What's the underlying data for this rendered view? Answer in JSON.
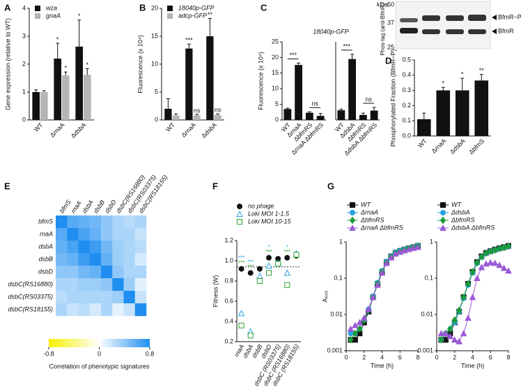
{
  "chart_data": [
    {
      "panel": "A",
      "type": "bar",
      "ylabel": "Gene expression (relative to WT)",
      "categories": [
        "WT",
        "ΔrnaA",
        "ΔdsbA"
      ],
      "ylim": [
        0,
        4
      ],
      "yticks": [
        0,
        1,
        2,
        3,
        4
      ],
      "series": [
        {
          "name": "wza",
          "color": "#111111",
          "values": [
            1,
            2.2,
            2.63
          ],
          "errors": [
            0.08,
            0.55,
            0.95
          ],
          "significance": [
            null,
            "*",
            "*"
          ]
        },
        {
          "name": "gnaA",
          "color": "#b5b5b5",
          "values": [
            1,
            1.6,
            1.62
          ],
          "errors": [
            0.05,
            0.12,
            0.22
          ],
          "significance": [
            null,
            "*",
            "*"
          ]
        }
      ]
    },
    {
      "panel": "B",
      "type": "bar",
      "ylabel": "Fluorescence (x 10⁴)",
      "categories": [
        "WT",
        "ΔrnaA",
        "ΔdsbA"
      ],
      "ylim": [
        0,
        20
      ],
      "yticks": [
        0,
        5,
        10,
        15,
        20
      ],
      "series": [
        {
          "name": "18040p-GFP",
          "color": "#111111",
          "values": [
            2,
            12.8,
            15
          ],
          "errors": [
            1.8,
            0.8,
            3.2
          ],
          "significance": [
            null,
            "***",
            "**"
          ]
        },
        {
          "name": "adcp-GFP",
          "color": "#b5b5b5",
          "values": [
            0.8,
            0.8,
            0.9
          ],
          "errors": [
            0.3,
            0.2,
            0.2
          ],
          "significance": [
            null,
            "ns",
            "ns"
          ]
        }
      ]
    },
    {
      "panel": "C",
      "type": "bar",
      "title": "18040p-GFP",
      "ylabel": "Fluorescence (x 10⁴)",
      "categories": [
        "WT",
        "ΔrnaA",
        "ΔbfmRS",
        "ΔrnaA ΔbfmRS",
        "WT",
        "ΔdsbA",
        "ΔbfmRS",
        "ΔdsbA ΔbfmRS"
      ],
      "ylim": [
        0,
        25
      ],
      "yticks": [
        0,
        5,
        10,
        15,
        20,
        25
      ],
      "series": [
        {
          "color": "#111111",
          "values": [
            3.5,
            17.6,
            2.3,
            1.3,
            3.1,
            19.5,
            1.6,
            3.0
          ],
          "errors": [
            0.3,
            0.6,
            0.3,
            0.8,
            0.4,
            1.5,
            0.6,
            1.0
          ],
          "significance": [
            null,
            "***",
            null,
            "ns",
            null,
            "***",
            null,
            "ns"
          ]
        }
      ]
    },
    {
      "panel": "D",
      "type": "bar",
      "ylabel": "Phosphorylated Fraction (BfmR~P)",
      "blot": {
        "unit": "kDa",
        "markers": [
          50,
          37,
          25
        ],
        "bands": [
          "BfmR~P",
          "BfmR"
        ],
        "label": "Phos-tag (anti-BfmR)"
      },
      "categories": [
        "WT",
        "ΔrnaA",
        "ΔdsbA",
        "ΔbfmS"
      ],
      "ylim": [
        0,
        0.5
      ],
      "yticks": [
        {
          "value": 0,
          "label": "0.0"
        },
        0.1,
        0.2,
        0.3,
        0.4,
        0.5
      ],
      "series": [
        {
          "color": "#111111",
          "values": [
            0.11,
            0.3,
            0.3,
            0.365
          ],
          "errors": [
            0.04,
            0.02,
            0.08,
            0.04
          ],
          "significance": [
            null,
            "*",
            "*",
            "**"
          ]
        }
      ]
    },
    {
      "panel": "E",
      "type": "heatmap",
      "labels": [
        "bfmS",
        "rnaA",
        "dsbA",
        "dsbB",
        "dsbD",
        "dsbC(RS16880)",
        "dsbC(RS03375)",
        "dsbC(RS18155)"
      ],
      "values": [
        [
          0.8,
          0.6,
          0.55,
          0.5,
          0.4,
          0.3,
          0.25,
          0.3
        ],
        [
          0.6,
          0.8,
          0.65,
          0.55,
          0.4,
          0.3,
          0.3,
          0.2
        ],
        [
          0.55,
          0.65,
          0.8,
          0.7,
          0.5,
          0.35,
          0.3,
          0.25
        ],
        [
          0.5,
          0.55,
          0.7,
          0.8,
          0.55,
          0.35,
          0.3,
          0.15
        ],
        [
          0.4,
          0.4,
          0.5,
          0.55,
          0.8,
          0.4,
          0.3,
          0.3
        ],
        [
          0.3,
          0.3,
          0.35,
          0.35,
          0.4,
          0.8,
          0.35,
          0.1
        ],
        [
          0.25,
          0.3,
          0.3,
          0.3,
          0.3,
          0.35,
          0.8,
          0.2
        ],
        [
          0.3,
          0.2,
          0.25,
          0.15,
          0.3,
          0.1,
          0.2,
          0.8
        ]
      ],
      "colorbar": {
        "ticks": [
          -0.8,
          0,
          0.8
        ],
        "colors": [
          "#f5f000",
          "#ffffff",
          "#1f8ef0"
        ],
        "label": "Correlation of phenotypic signatures"
      }
    },
    {
      "panel": "F",
      "type": "scatter",
      "ylabel": "Fitness (W)",
      "categories": [
        "rnaA",
        "dsbA",
        "dsbB",
        "dsbD",
        "dsbC (RS03375)",
        "dsbC (RS16880)",
        "dsbC (RS18155)"
      ],
      "ylim": [
        0.2,
        1.2
      ],
      "yticks": [
        0.2,
        0.4,
        0.6,
        0.8,
        {
          "value": 1,
          "label": "1.0"
        },
        1.2
      ],
      "reference": 0.94,
      "series": [
        {
          "name": "no phage",
          "color": "#111111",
          "marker": "circle",
          "filled": true,
          "values": [
            0.92,
            0.88,
            0.92,
            1.03,
            1.02,
            1.03,
            1.05
          ],
          "significance": [
            null,
            null,
            null,
            null,
            null,
            null,
            null
          ]
        },
        {
          "name": "Loki MOI 1-1.5",
          "color": "#29a3e0",
          "marker": "triangle",
          "filled": false,
          "values": [
            0.48,
            0.3,
            0.85,
            0.95,
            0.98,
            0.88,
            1.07
          ],
          "significance": [
            "***",
            "***",
            null,
            "*",
            null,
            "*",
            null
          ]
        },
        {
          "name": "Loki MOI 10-15",
          "color": "#2aa02a",
          "marker": "square",
          "filled": false,
          "values": [
            0.36,
            0.26,
            0.8,
            0.88,
            0.97,
            0.76,
            1.06
          ],
          "significance": [
            "***",
            "***",
            null,
            "***",
            null,
            "***",
            null
          ]
        }
      ]
    },
    {
      "panel": "G",
      "type": "line",
      "ylabel": "A₆₀₀",
      "xlabel": "Time (h)",
      "log": true,
      "x": [
        0.5,
        1,
        1.5,
        2,
        2.5,
        3,
        3.5,
        4,
        4.5,
        5,
        5.5,
        6,
        6.5,
        7,
        7.5,
        8
      ],
      "xlim": [
        0,
        8
      ],
      "xticks": [
        0,
        2,
        4,
        6,
        8
      ],
      "ylim": [
        0.001,
        1
      ],
      "yticks": [
        0.001,
        0.01,
        0.1,
        1
      ],
      "series": [
        {
          "name": "WT",
          "color": "#111111",
          "marker": "square",
          "values": [
            0.002,
            0.002,
            0.003,
            0.006,
            0.012,
            0.03,
            0.07,
            0.15,
            0.28,
            0.4,
            0.5,
            0.56,
            0.62,
            0.67,
            0.72,
            0.78
          ]
        },
        {
          "name": "ΔrnaA",
          "color": "#29a3e0",
          "marker": "circle",
          "values": [
            0.003,
            0.003,
            0.004,
            0.007,
            0.014,
            0.032,
            0.075,
            0.16,
            0.29,
            0.41,
            0.52,
            0.58,
            0.63,
            0.68,
            0.73,
            0.8
          ]
        },
        {
          "name": "ΔbfmRS",
          "color": "#1a9b3a",
          "marker": "diamond",
          "values": [
            0.002,
            0.003,
            0.004,
            0.007,
            0.013,
            0.03,
            0.07,
            0.15,
            0.27,
            0.39,
            0.49,
            0.55,
            0.6,
            0.66,
            0.7,
            0.76
          ]
        },
        {
          "name": "ΔrnaA ΔbfmRS",
          "color": "#9b59d6",
          "marker": "triangle",
          "values": [
            0.004,
            0.005,
            0.006,
            0.008,
            0.014,
            0.03,
            0.065,
            0.14,
            0.26,
            0.37,
            0.47,
            0.53,
            0.58,
            0.63,
            0.68,
            0.72
          ]
        }
      ]
    },
    {
      "type": "line",
      "xlabel": "Time (h)",
      "log": true,
      "x": [
        0.5,
        1,
        1.5,
        2,
        2.5,
        3,
        3.5,
        4,
        4.5,
        5,
        5.5,
        6,
        6.5,
        7,
        7.5,
        8
      ],
      "xlim": [
        0,
        8
      ],
      "xticks": [
        0,
        2,
        4,
        6,
        8
      ],
      "ylim": [
        0.001,
        1
      ],
      "yticks": [
        0.001,
        0.01,
        0.1,
        1
      ],
      "series": [
        {
          "name": "WT",
          "color": "#111111",
          "marker": "square",
          "values": [
            0.002,
            0.002,
            0.003,
            0.006,
            0.012,
            0.03,
            0.07,
            0.15,
            0.28,
            0.4,
            0.5,
            0.56,
            0.62,
            0.67,
            0.72,
            0.78
          ]
        },
        {
          "name": "ΔdsbA",
          "color": "#29a3e0",
          "marker": "circle",
          "values": [
            0.002,
            0.003,
            0.004,
            0.006,
            0.012,
            0.028,
            0.065,
            0.14,
            0.26,
            0.38,
            0.48,
            0.55,
            0.6,
            0.65,
            0.7,
            0.75
          ]
        },
        {
          "name": "ΔbfmRS",
          "color": "#1a9b3a",
          "marker": "diamond",
          "values": [
            0.002,
            0.003,
            0.004,
            0.007,
            0.013,
            0.03,
            0.07,
            0.15,
            0.27,
            0.39,
            0.49,
            0.55,
            0.6,
            0.66,
            0.7,
            0.76
          ]
        },
        {
          "name": "ΔdsbA ΔbfmRS",
          "color": "#9b59d6",
          "marker": "triangle",
          "values": [
            0.003,
            0.003,
            0.0025,
            0.002,
            0.0018,
            0.003,
            0.008,
            0.03,
            0.1,
            0.2,
            0.25,
            0.27,
            0.26,
            0.23,
            0.19,
            0.16
          ]
        }
      ]
    }
  ]
}
